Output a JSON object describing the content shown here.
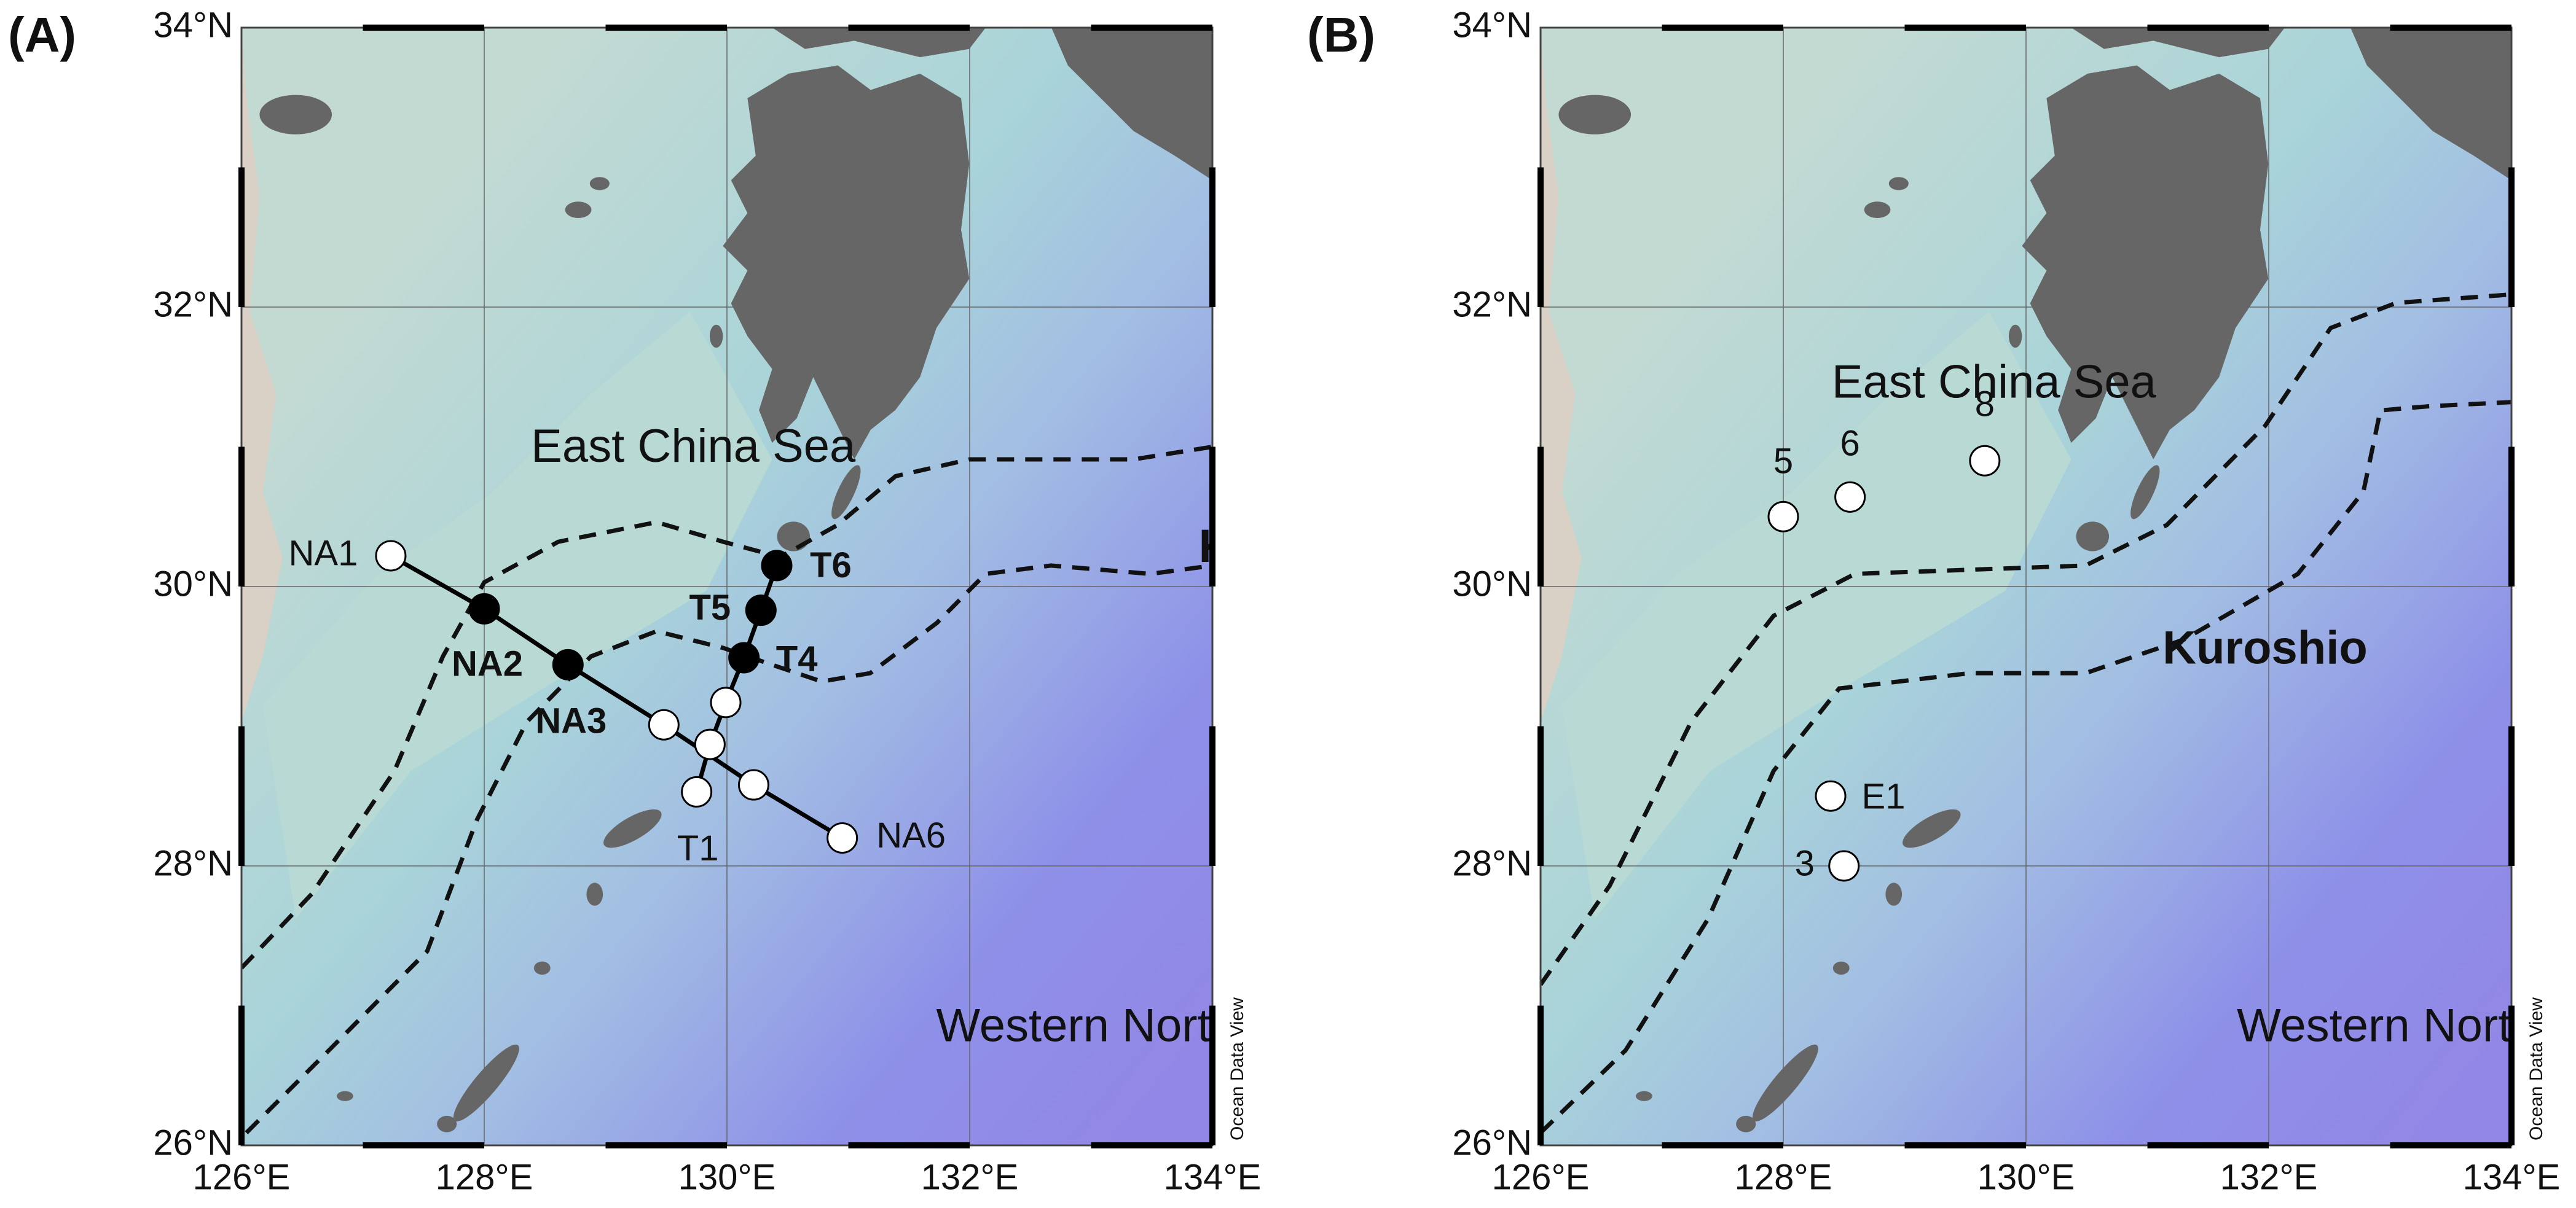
{
  "panels": [
    {
      "label": "(A)",
      "lonlim": [
        126,
        134
      ],
      "latlim": [
        26,
        34
      ],
      "lonticks": [
        {
          "value": 126,
          "label": "126°E"
        },
        {
          "value": 128,
          "label": "128°E"
        },
        {
          "value": 130,
          "label": "130°E"
        },
        {
          "value": 132,
          "label": "132°E"
        },
        {
          "value": 134,
          "label": "134°E"
        }
      ],
      "latticks": [
        {
          "value": 26,
          "label": "26°N"
        },
        {
          "value": 28,
          "label": "28°N"
        },
        {
          "value": 30,
          "label": "30°N"
        },
        {
          "value": 32,
          "label": "32°N"
        },
        {
          "value": 34,
          "label": "34°N"
        }
      ],
      "regions": {
        "east_china_sea": "East China Sea",
        "kuroshio": "Kuroshio",
        "pacific": "Western North Pacific"
      },
      "credit": "Ocean Data View",
      "kuroshio_fronts": [
        {
          "lon": [
            126.0,
            126.58,
            127.26,
            127.66,
            128.0,
            128.61,
            129.42,
            129.97,
            130.44,
            130.91,
            131.39,
            132.0,
            132.67,
            133.35,
            134.0
          ],
          "lat": [
            27.27,
            27.8,
            28.68,
            29.5,
            30.03,
            30.32,
            30.46,
            30.32,
            30.21,
            30.44,
            30.79,
            30.91,
            30.91,
            30.91,
            31.0
          ]
        },
        {
          "lon": [
            126.04,
            126.72,
            127.53,
            127.94,
            128.35,
            128.88,
            129.42,
            129.97,
            130.37,
            130.78,
            131.18,
            131.73,
            132.13,
            132.67,
            133.49,
            134.0
          ],
          "lat": [
            26.09,
            26.68,
            27.39,
            28.33,
            29.03,
            29.5,
            29.68,
            29.56,
            29.44,
            29.32,
            29.38,
            29.74,
            30.09,
            30.15,
            30.09,
            30.15
          ]
        }
      ],
      "transects": [
        {
          "stations": [
            {
              "label": "NA1",
              "lon": 127.23,
              "lat": 30.22,
              "filled": false
            },
            {
              "label": "NA2",
              "lon": 128.0,
              "lat": 29.84,
              "filled": true
            },
            {
              "label": "NA3",
              "lon": 128.69,
              "lat": 29.44,
              "filled": true
            },
            {
              "label": null,
              "lon": 129.48,
              "lat": 29.01,
              "filled": false
            },
            {
              "label": null,
              "lon": 130.22,
              "lat": 28.58,
              "filled": false
            },
            {
              "label": "NA6",
              "lon": 130.95,
              "lat": 28.2,
              "filled": false
            }
          ]
        },
        {
          "stations": [
            {
              "label": "T1",
              "lon": 129.75,
              "lat": 28.53,
              "filled": false
            },
            {
              "label": null,
              "lon": 129.86,
              "lat": 28.87,
              "filled": false
            },
            {
              "label": null,
              "lon": 129.99,
              "lat": 29.17,
              "filled": false
            },
            {
              "label": "T4",
              "lon": 130.14,
              "lat": 29.49,
              "filled": true
            },
            {
              "label": "T5",
              "lon": 130.28,
              "lat": 29.83,
              "filled": true
            },
            {
              "label": "T6",
              "lon": 130.41,
              "lat": 30.15,
              "filled": true
            }
          ]
        }
      ]
    },
    {
      "label": "(B)",
      "lonlim": [
        126,
        134
      ],
      "latlim": [
        26,
        34
      ],
      "lonticks": [
        {
          "value": 126,
          "label": "126°E"
        },
        {
          "value": 128,
          "label": "128°E"
        },
        {
          "value": 130,
          "label": "130°E"
        },
        {
          "value": 132,
          "label": "132°E"
        },
        {
          "value": 134,
          "label": "134°E"
        }
      ],
      "latticks": [
        {
          "value": 26,
          "label": "26°N"
        },
        {
          "value": 28,
          "label": "28°N"
        },
        {
          "value": 30,
          "label": "30°N"
        },
        {
          "value": 32,
          "label": "32°N"
        },
        {
          "value": 34,
          "label": "34°N"
        }
      ],
      "regions": {
        "east_china_sea": "East China Sea",
        "kuroshio": "Kuroshio",
        "pacific": "Western North Pacific"
      },
      "credit": "Ocean Data View",
      "kuroshio_fronts": [
        {
          "lon": [
            126.0,
            126.57,
            127.24,
            127.92,
            128.59,
            129.54,
            130.49,
            131.16,
            131.97,
            132.51,
            133.05,
            134.0
          ],
          "lat": [
            27.15,
            27.86,
            29.03,
            29.79,
            30.09,
            30.12,
            30.15,
            30.44,
            31.15,
            31.85,
            32.03,
            32.09
          ]
        },
        {
          "lon": [
            126.0,
            126.7,
            127.38,
            127.92,
            128.46,
            129.54,
            130.49,
            131.3,
            132.24,
            132.78,
            132.92,
            133.32,
            134.0
          ],
          "lat": [
            26.09,
            26.68,
            27.62,
            28.68,
            29.27,
            29.38,
            29.38,
            29.62,
            30.09,
            30.68,
            31.26,
            31.29,
            31.32
          ]
        }
      ],
      "stations": [
        {
          "label": "5",
          "lon": 128.0,
          "lat": 30.5,
          "filled": false
        },
        {
          "label": "6",
          "lon": 128.55,
          "lat": 30.64,
          "filled": false
        },
        {
          "label": "8",
          "lon": 129.66,
          "lat": 30.9,
          "filled": false
        },
        {
          "label": "E1",
          "lon": 128.39,
          "lat": 28.5,
          "filled": false
        },
        {
          "label": "3",
          "lon": 128.5,
          "lat": 28.0,
          "filled": false
        }
      ]
    }
  ]
}
